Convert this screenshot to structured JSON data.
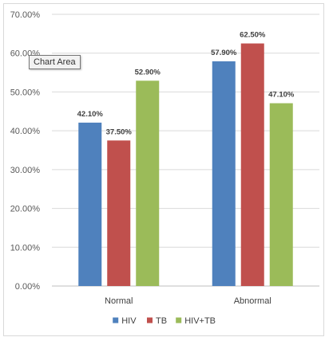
{
  "chart_data": {
    "type": "bar",
    "categories": [
      "Normal",
      "Abnormal"
    ],
    "series": [
      {
        "name": "HIV",
        "values": [
          42.1,
          57.9
        ],
        "labels": [
          "42.10%",
          "57.90%"
        ],
        "color": "#4f81bd"
      },
      {
        "name": "TB",
        "values": [
          37.5,
          62.5
        ],
        "labels": [
          "37.50%",
          "62.50%"
        ],
        "color": "#c0504d"
      },
      {
        "name": "HIV+TB",
        "values": [
          52.9,
          47.1
        ],
        "labels": [
          "52.90%",
          "47.10%"
        ],
        "color": "#9bbb59"
      }
    ],
    "ylim": [
      0,
      70
    ],
    "y_ticks": [
      0,
      10,
      20,
      30,
      40,
      50,
      60,
      70
    ],
    "y_tick_labels": [
      "0.00%",
      "10.00%",
      "20.00%",
      "30.00%",
      "40.00%",
      "50.00%",
      "60.00%",
      "70.00%"
    ],
    "grid": true,
    "legend": "bottom",
    "title": "",
    "xlabel": "",
    "ylabel": ""
  },
  "tooltip": {
    "text": "Chart Area"
  }
}
